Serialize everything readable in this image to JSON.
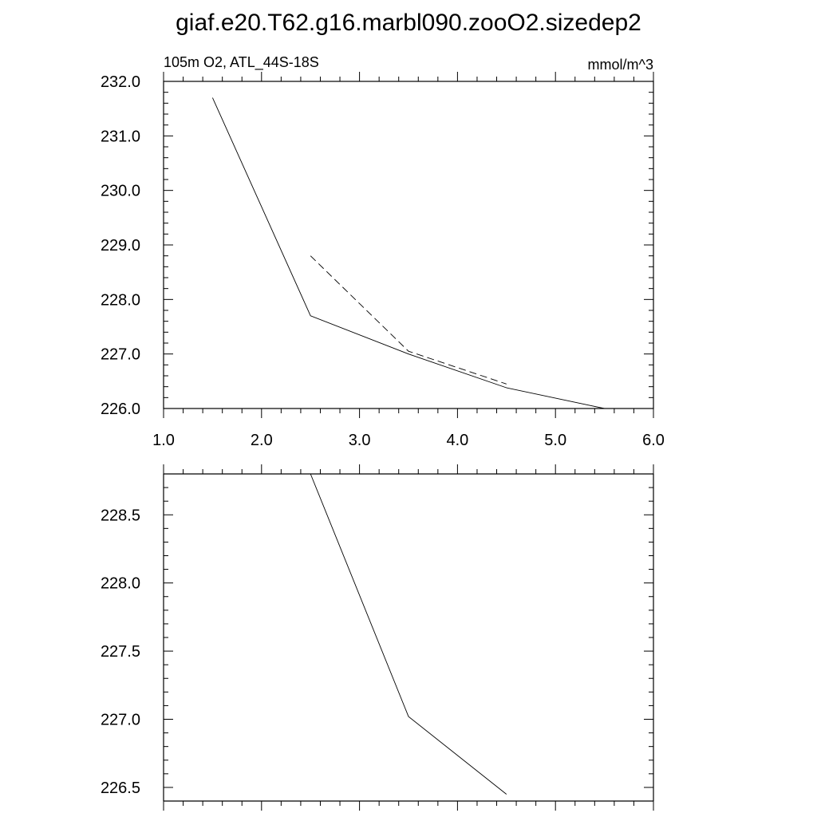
{
  "title": "giaf.e20.T62.g16.marbl090.zooO2.sizedep2",
  "chart_data": [
    {
      "type": "line",
      "left_label": "105m O2, ATL_44S-18S",
      "right_label": "mmol/m^3",
      "xlim": [
        1.0,
        6.0
      ],
      "ylim": [
        226.0,
        232.0
      ],
      "x_ticks": [
        1.0,
        2.0,
        3.0,
        4.0,
        5.0,
        6.0
      ],
      "x_tick_labels": [
        "1.0",
        "2.0",
        "3.0",
        "4.0",
        "5.0",
        "6.0"
      ],
      "y_ticks": [
        226.0,
        227.0,
        228.0,
        229.0,
        230.0,
        231.0,
        232.0
      ],
      "y_tick_labels": [
        "226.0",
        "227.0",
        "228.0",
        "229.0",
        "230.0",
        "231.0",
        "232.0"
      ],
      "grid": false,
      "series": [
        {
          "style": "solid",
          "x": [
            1.5,
            2.5,
            3.5,
            4.5,
            5.5
          ],
          "y": [
            231.7,
            227.7,
            227.0,
            226.38,
            226.0
          ]
        },
        {
          "style": "dashed",
          "x": [
            2.5,
            3.5,
            4.5
          ],
          "y": [
            228.8,
            227.05,
            226.45
          ]
        }
      ]
    },
    {
      "type": "line",
      "xlim": [
        1.0,
        6.0
      ],
      "ylim": [
        226.4,
        228.8
      ],
      "x_ticks": [
        1.0,
        2.0,
        3.0,
        4.0,
        5.0,
        6.0
      ],
      "y_ticks": [
        226.5,
        227.0,
        227.5,
        228.0,
        228.5
      ],
      "y_tick_labels": [
        "226.5",
        "227.0",
        "227.5",
        "228.0",
        "228.5"
      ],
      "grid": false,
      "series": [
        {
          "style": "solid",
          "x": [
            2.5,
            3.5,
            4.5
          ],
          "y": [
            228.8,
            227.02,
            226.45
          ]
        }
      ]
    }
  ]
}
